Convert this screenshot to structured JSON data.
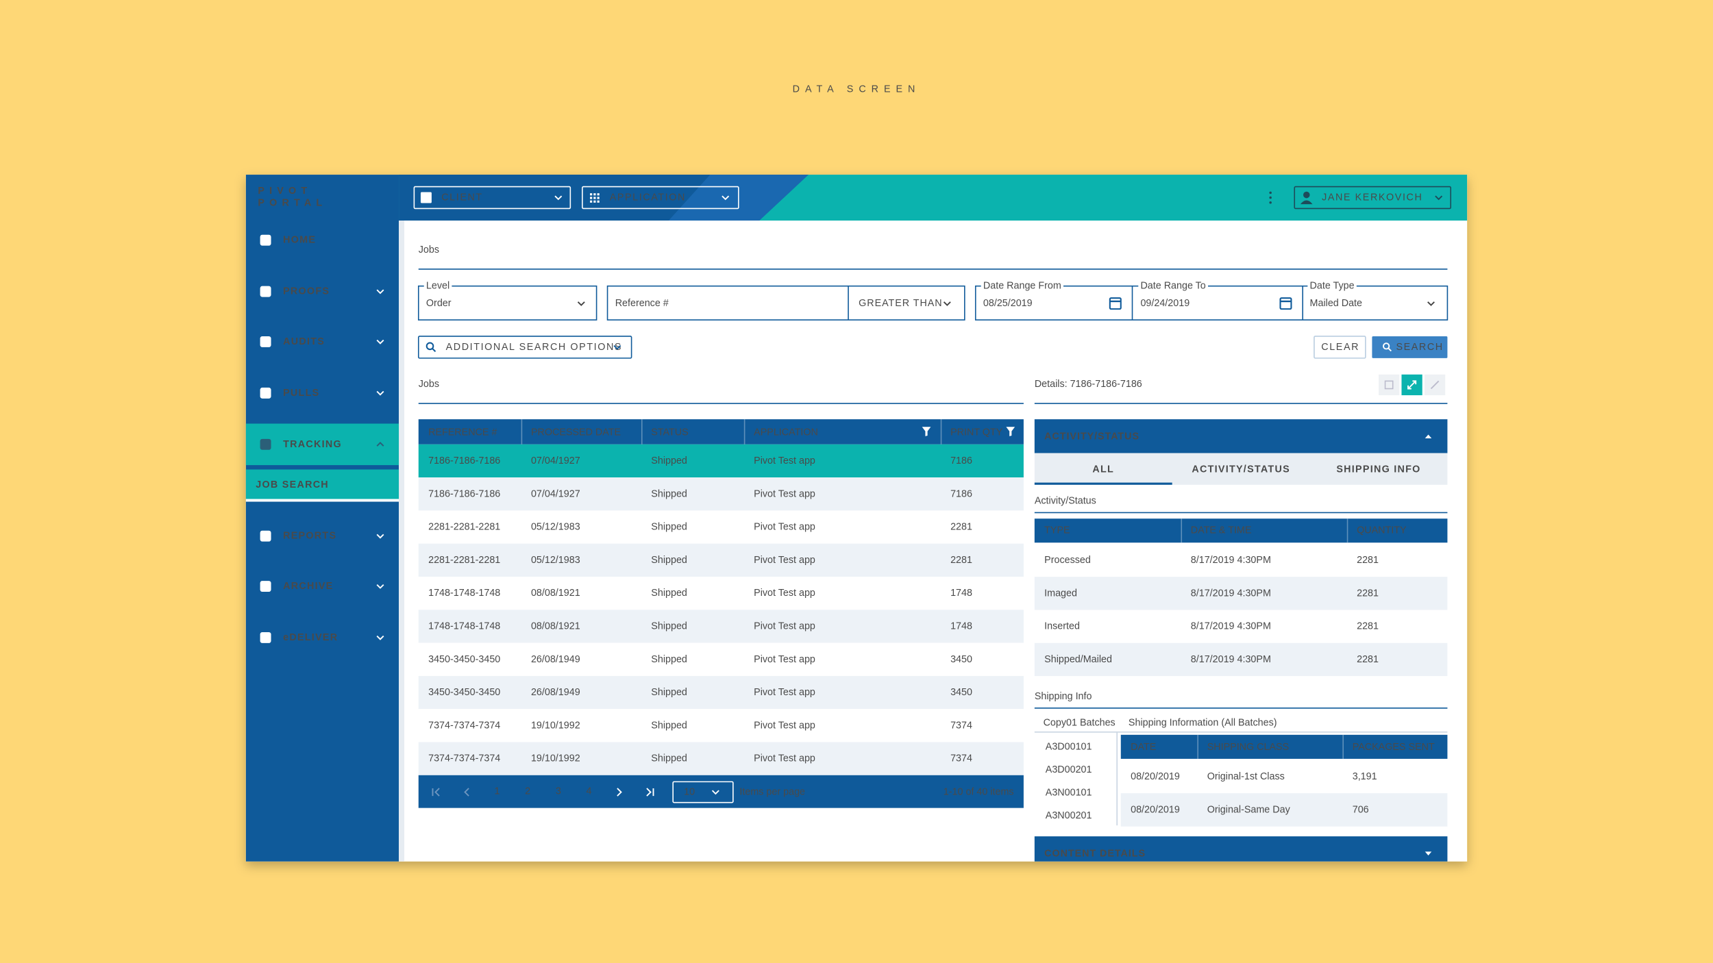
{
  "title": "DATA SCREEN",
  "sidebar": {
    "logo": [
      "PIVOT",
      "PORTAL"
    ],
    "items": [
      "HOME",
      "PROOFS",
      "AUDITS",
      "PULLS",
      "TRACKING",
      "REPORTS",
      "ARCHIVE",
      "eDELIVER"
    ],
    "subitem": "JOB SEARCH"
  },
  "topbar": {
    "client": "CLIENT",
    "application": "APPLICATION",
    "user": "JANE KERKOVICH"
  },
  "page_title": "Jobs",
  "filters": {
    "level_label": "Level",
    "level": "Order",
    "reference": "Reference #",
    "operator": "GREATER THAN",
    "date_from_label": "Date Range From",
    "date_from": "08/25/2019",
    "date_to_label": "Date Range To",
    "date_to": "09/24/2019",
    "date_type_label": "Date Type",
    "date_type": "Mailed Date",
    "additional": "ADDITIONAL SEARCH OPTIONS",
    "clear": "CLEAR",
    "search": "SEARCH"
  },
  "jobs": {
    "title": "Jobs",
    "columns": [
      "REFERENCE #",
      "PROCESSED DATE",
      "STATUS",
      "APPLICATION",
      "PRINT QTY"
    ],
    "rows": [
      [
        "7186-7186-7186",
        "07/04/1927",
        "Shipped",
        "Pivot Test app",
        "7186"
      ],
      [
        "7186-7186-7186",
        "07/04/1927",
        "Shipped",
        "Pivot Test app",
        "7186"
      ],
      [
        "2281-2281-2281",
        "05/12/1983",
        "Shipped",
        "Pivot Test app",
        "2281"
      ],
      [
        "2281-2281-2281",
        "05/12/1983",
        "Shipped",
        "Pivot Test app",
        "2281"
      ],
      [
        "1748-1748-1748",
        "08/08/1921",
        "Shipped",
        "Pivot Test app",
        "1748"
      ],
      [
        "1748-1748-1748",
        "08/08/1921",
        "Shipped",
        "Pivot Test app",
        "1748"
      ],
      [
        "3450-3450-3450",
        "26/08/1949",
        "Shipped",
        "Pivot Test app",
        "3450"
      ],
      [
        "3450-3450-3450",
        "26/08/1949",
        "Shipped",
        "Pivot Test app",
        "3450"
      ],
      [
        "7374-7374-7374",
        "19/10/1992",
        "Shipped",
        "Pivot Test app",
        "7374"
      ],
      [
        "7374-7374-7374",
        "19/10/1992",
        "Shipped",
        "Pivot Test app",
        "7374"
      ]
    ],
    "pagination": {
      "pages": [
        "1",
        "2",
        "3",
        "4"
      ],
      "per_page": "10",
      "per_page_label": "Items per page",
      "summary": "1-10 of 40 items"
    }
  },
  "details": {
    "title": "Details: 7186-7186-7186",
    "section": "ACTIVITY/STATUS",
    "tabs": [
      "ALL",
      "ACTIVITY/STATUS",
      "SHIPPING INFO"
    ],
    "activity_label": "Activity/Status",
    "activity": {
      "columns": [
        "TYPE",
        "DATE & TIME",
        "QUANTITY"
      ],
      "rows": [
        [
          "Processed",
          "8/17/2019 4:30PM",
          "2281"
        ],
        [
          "Imaged",
          "8/17/2019 4:30PM",
          "2281"
        ],
        [
          "Inserted",
          "8/17/2019 4:30PM",
          "2281"
        ],
        [
          "Shipped/Mailed",
          "8/17/2019 4:30PM",
          "2281"
        ]
      ]
    },
    "shipping_label": "Shipping Info",
    "batches_label": "Copy01 Batches",
    "shipping_info_label": "Shipping Information (All Batches)",
    "batches": [
      "A3D00101",
      "A3D00201",
      "A3N00101",
      "A3N00201"
    ],
    "shipping": {
      "columns": [
        "DATE",
        "SHIPPING CLASS",
        "PACKAGES SENT"
      ],
      "rows": [
        [
          "08/20/2019",
          "Original-1st Class",
          "3,191"
        ],
        [
          "08/20/2019",
          "Original-Same Day",
          "706"
        ]
      ]
    },
    "content": "CONTENT DETAILS"
  }
}
